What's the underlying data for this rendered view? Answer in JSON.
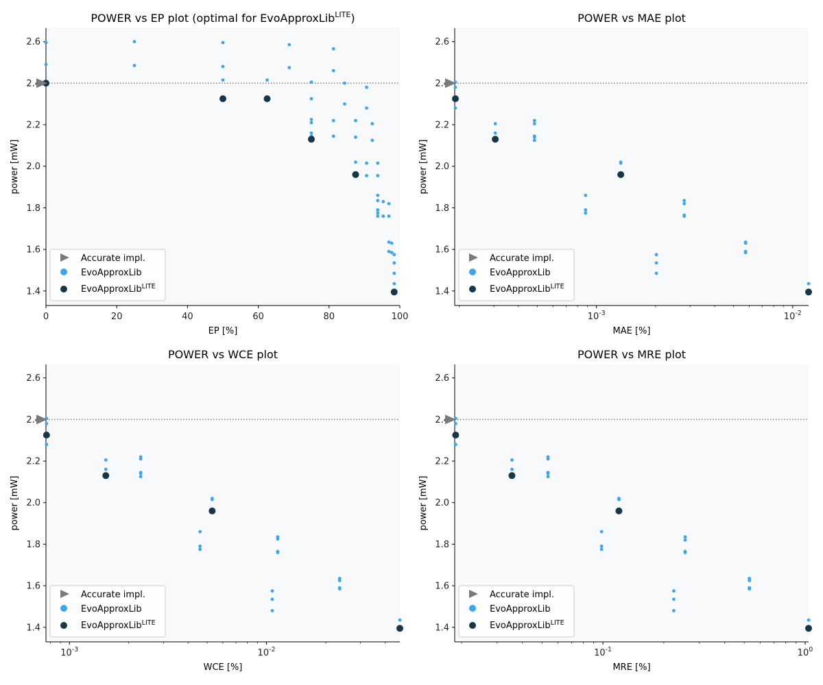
{
  "legend": {
    "accurate": "Accurate impl.",
    "evo": "EvoApproxLib",
    "lite_base": "EvoApproxLib",
    "lite_sup": "LITE"
  },
  "colors": {
    "panel_bg": "#f8f9fb",
    "evo": "#3aa5f0",
    "lite": "#17364a",
    "accurate": "#7a7a7a",
    "ref_line": "#777777",
    "axis": "#000000"
  },
  "chart_data": [
    {
      "id": "ep",
      "type": "scatter",
      "title": "POWER vs EP plot (optimal for EvoApproxLib",
      "title_sup": "LITE",
      "title_end": ")",
      "xlabel": "EP [%]",
      "ylabel": "power [mW]",
      "xscale": "linear",
      "xlim": [
        0,
        100
      ],
      "ylim": [
        1.33,
        2.665
      ],
      "xticks": [
        0,
        20,
        40,
        60,
        80,
        100
      ],
      "xtick_labels": [
        "0",
        "20",
        "40",
        "60",
        "80",
        "100"
      ],
      "yticks": [
        1.4,
        1.6,
        1.8,
        2.0,
        2.2,
        2.4,
        2.6
      ],
      "ytick_labels": [
        "1.4",
        "1.6",
        "1.8",
        "2.0",
        "2.2",
        "2.4",
        "2.6"
      ],
      "reference_y": 2.4,
      "legend_loc": "lower-left",
      "accurate": {
        "x": 0,
        "y": 2.4
      },
      "evo": [
        [
          0,
          2.595
        ],
        [
          0,
          2.49
        ],
        [
          0,
          2.405
        ],
        [
          25,
          2.6
        ],
        [
          25,
          2.485
        ],
        [
          50,
          2.595
        ],
        [
          50,
          2.48
        ],
        [
          50,
          2.415
        ],
        [
          62.5,
          2.415
        ],
        [
          68.75,
          2.585
        ],
        [
          68.75,
          2.475
        ],
        [
          75,
          2.405
        ],
        [
          75,
          2.325
        ],
        [
          75,
          2.225
        ],
        [
          75,
          2.21
        ],
        [
          75,
          2.16
        ],
        [
          75,
          2.145
        ],
        [
          81.25,
          2.565
        ],
        [
          81.25,
          2.46
        ],
        [
          81.25,
          2.22
        ],
        [
          81.25,
          2.145
        ],
        [
          84.4,
          2.4
        ],
        [
          84.4,
          2.3
        ],
        [
          87.5,
          2.22
        ],
        [
          87.5,
          2.14
        ],
        [
          87.5,
          2.02
        ],
        [
          90.6,
          2.38
        ],
        [
          90.6,
          2.28
        ],
        [
          90.6,
          2.015
        ],
        [
          90.6,
          1.955
        ],
        [
          92.2,
          2.205
        ],
        [
          92.2,
          2.125
        ],
        [
          93.75,
          2.015
        ],
        [
          93.75,
          1.955
        ],
        [
          93.75,
          1.86
        ],
        [
          93.75,
          1.835
        ],
        [
          93.75,
          1.79
        ],
        [
          93.75,
          1.775
        ],
        [
          93.75,
          1.76
        ],
        [
          95.3,
          1.83
        ],
        [
          95.3,
          1.76
        ],
        [
          96.9,
          1.82
        ],
        [
          96.9,
          1.76
        ],
        [
          96.9,
          1.635
        ],
        [
          96.9,
          1.59
        ],
        [
          97.7,
          1.63
        ],
        [
          97.7,
          1.585
        ],
        [
          98.4,
          1.575
        ],
        [
          98.4,
          1.535
        ],
        [
          98.4,
          1.485
        ],
        [
          98.4,
          1.435
        ]
      ],
      "lite": [
        [
          0,
          2.4
        ],
        [
          50,
          2.325
        ],
        [
          62.5,
          2.325
        ],
        [
          75,
          2.13
        ],
        [
          87.5,
          1.96
        ],
        [
          98.4,
          1.395
        ]
      ]
    },
    {
      "id": "mae",
      "type": "scatter",
      "title": "POWER vs MAE plot",
      "xlabel": "MAE [%]",
      "ylabel": "power [mW]",
      "xscale": "log",
      "xlim": [
        0.0001895,
        0.01205
      ],
      "ylim": [
        1.33,
        2.665
      ],
      "xticks": [
        0.001,
        0.01
      ],
      "xtick_labels": [
        "10",
        "10"
      ],
      "xtick_exps": [
        "-3",
        "-2"
      ],
      "yticks": [
        1.4,
        1.6,
        1.8,
        2.0,
        2.2,
        2.4,
        2.6
      ],
      "ytick_labels": [
        "1.4",
        "1.6",
        "1.8",
        "2.0",
        "2.2",
        "2.4",
        "2.6"
      ],
      "reference_y": 2.4,
      "legend_loc": "lower-left",
      "accurate": {
        "x": 0.0001895,
        "y": 2.4
      },
      "evo": [
        [
          0.000191,
          2.405
        ],
        [
          0.000191,
          2.38
        ],
        [
          0.000191,
          2.325
        ],
        [
          0.000191,
          2.28
        ],
        [
          0.000305,
          2.205
        ],
        [
          0.000305,
          2.16
        ],
        [
          0.000483,
          2.22
        ],
        [
          0.000483,
          2.205
        ],
        [
          0.000483,
          2.145
        ],
        [
          0.000483,
          2.14
        ],
        [
          0.000483,
          2.125
        ],
        [
          0.00088,
          1.86
        ],
        [
          0.00088,
          1.79
        ],
        [
          0.00088,
          1.775
        ],
        [
          0.00133,
          2.02
        ],
        [
          0.00133,
          2.015
        ],
        [
          0.00202,
          1.575
        ],
        [
          0.00202,
          1.535
        ],
        [
          0.00202,
          1.485
        ],
        [
          0.0028,
          1.835
        ],
        [
          0.0028,
          1.82
        ],
        [
          0.0028,
          1.765
        ],
        [
          0.0028,
          1.76
        ],
        [
          0.00575,
          1.635
        ],
        [
          0.00575,
          1.63
        ],
        [
          0.00575,
          1.59
        ],
        [
          0.00575,
          1.585
        ],
        [
          0.01205,
          1.435
        ]
      ],
      "lite": [
        [
          0.000191,
          2.325
        ],
        [
          0.000305,
          2.13
        ],
        [
          0.00133,
          1.96
        ],
        [
          0.01205,
          1.395
        ]
      ]
    },
    {
      "id": "wce",
      "type": "scatter",
      "title": "POWER vs WCE plot",
      "xlabel": "WCE [%]",
      "ylabel": "power [mW]",
      "xscale": "log",
      "xlim": [
        0.00076,
        0.0475
      ],
      "ylim": [
        1.33,
        2.665
      ],
      "xticks": [
        0.001,
        0.01
      ],
      "xtick_labels": [
        "10",
        "10"
      ],
      "xtick_exps": [
        "-3",
        "-2"
      ],
      "yticks": [
        1.4,
        1.6,
        1.8,
        2.0,
        2.2,
        2.4,
        2.6
      ],
      "ytick_labels": [
        "1.4",
        "1.6",
        "1.8",
        "2.0",
        "2.2",
        "2.4",
        "2.6"
      ],
      "reference_y": 2.4,
      "legend_loc": "lower-left",
      "accurate": {
        "x": 0.00076,
        "y": 2.4
      },
      "evo": [
        [
          0.000765,
          2.405
        ],
        [
          0.000765,
          2.38
        ],
        [
          0.000765,
          2.325
        ],
        [
          0.000765,
          2.28
        ],
        [
          0.00153,
          2.205
        ],
        [
          0.00153,
          2.16
        ],
        [
          0.0023,
          2.22
        ],
        [
          0.0023,
          2.21
        ],
        [
          0.0023,
          2.145
        ],
        [
          0.0023,
          2.14
        ],
        [
          0.0023,
          2.125
        ],
        [
          0.0046,
          1.86
        ],
        [
          0.0046,
          1.79
        ],
        [
          0.0046,
          1.775
        ],
        [
          0.0053,
          2.02
        ],
        [
          0.0053,
          2.015
        ],
        [
          0.0107,
          1.575
        ],
        [
          0.0107,
          1.535
        ],
        [
          0.0107,
          1.48
        ],
        [
          0.0114,
          1.835
        ],
        [
          0.0114,
          1.825
        ],
        [
          0.0114,
          1.765
        ],
        [
          0.0114,
          1.76
        ],
        [
          0.0235,
          1.635
        ],
        [
          0.0235,
          1.625
        ],
        [
          0.0235,
          1.59
        ],
        [
          0.0235,
          1.585
        ],
        [
          0.0475,
          1.435
        ]
      ],
      "lite": [
        [
          0.000765,
          2.325
        ],
        [
          0.00153,
          2.13
        ],
        [
          0.0053,
          1.96
        ],
        [
          0.0475,
          1.395
        ]
      ]
    },
    {
      "id": "mre",
      "type": "scatter",
      "title": "POWER vs MRE plot",
      "xlabel": "MRE [%]",
      "ylabel": "power [mW]",
      "xscale": "log",
      "xlim": [
        0.0185,
        1.04
      ],
      "ylim": [
        1.33,
        2.665
      ],
      "xticks": [
        0.1,
        1
      ],
      "xtick_labels": [
        "10",
        "10"
      ],
      "xtick_exps": [
        "-1",
        "0"
      ],
      "yticks": [
        1.4,
        1.6,
        1.8,
        2.0,
        2.2,
        2.4,
        2.6
      ],
      "ytick_labels": [
        "1.4",
        "1.6",
        "1.8",
        "2.0",
        "2.2",
        "2.4",
        "2.6"
      ],
      "reference_y": 2.4,
      "legend_loc": "lower-left",
      "accurate": {
        "x": 0.0185,
        "y": 2.4
      },
      "evo": [
        [
          0.0187,
          2.405
        ],
        [
          0.0187,
          2.38
        ],
        [
          0.0187,
          2.325
        ],
        [
          0.0187,
          2.28
        ],
        [
          0.0355,
          2.205
        ],
        [
          0.0355,
          2.16
        ],
        [
          0.0535,
          2.22
        ],
        [
          0.0535,
          2.21
        ],
        [
          0.0535,
          2.145
        ],
        [
          0.0535,
          2.14
        ],
        [
          0.0535,
          2.125
        ],
        [
          0.0985,
          1.86
        ],
        [
          0.0985,
          1.79
        ],
        [
          0.0985,
          1.775
        ],
        [
          0.12,
          2.02
        ],
        [
          0.12,
          2.015
        ],
        [
          0.224,
          1.575
        ],
        [
          0.224,
          1.535
        ],
        [
          0.224,
          1.48
        ],
        [
          0.255,
          1.835
        ],
        [
          0.255,
          1.82
        ],
        [
          0.255,
          1.765
        ],
        [
          0.255,
          1.76
        ],
        [
          0.53,
          1.635
        ],
        [
          0.53,
          1.625
        ],
        [
          0.53,
          1.59
        ],
        [
          0.53,
          1.585
        ],
        [
          1.04,
          1.435
        ]
      ],
      "lite": [
        [
          0.0187,
          2.325
        ],
        [
          0.0355,
          2.13
        ],
        [
          0.12,
          1.96
        ],
        [
          1.04,
          1.395
        ]
      ]
    }
  ]
}
